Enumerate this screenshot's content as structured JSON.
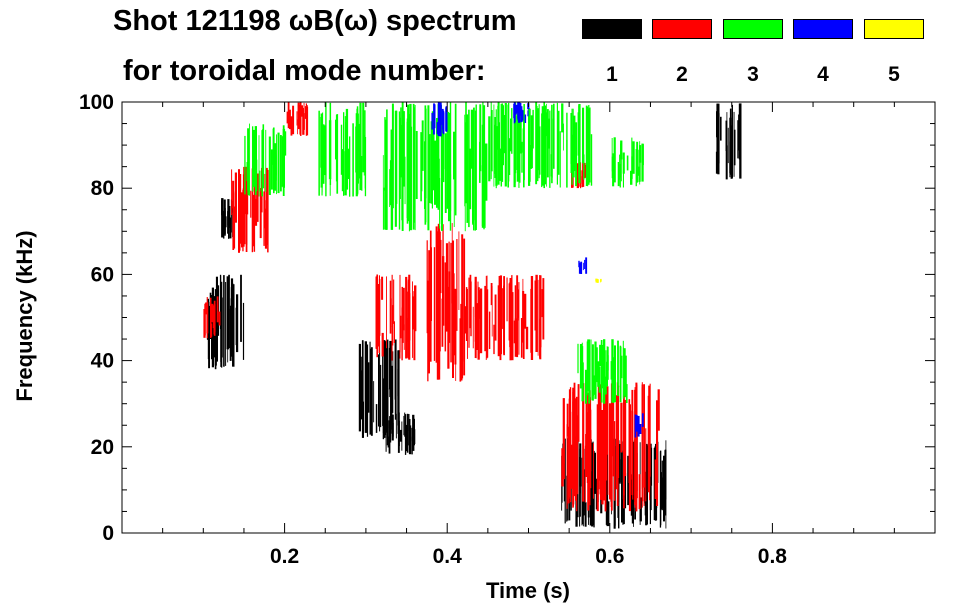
{
  "chart_data": {
    "type": "spectrogram",
    "title_line1": "Shot 121198 ωB(ω) spectrum",
    "title_line2": "for toroidal mode number:",
    "xlabel": "Time (s)",
    "ylabel": "Frequency (kHz)",
    "xlim": [
      0.0,
      1.0
    ],
    "ylim": [
      0,
      100
    ],
    "x_ticks": [
      {
        "value": 0.2,
        "label": "0.2"
      },
      {
        "value": 0.4,
        "label": "0.4"
      },
      {
        "value": 0.6,
        "label": "0.6"
      },
      {
        "value": 0.8,
        "label": "0.8"
      }
    ],
    "y_ticks": [
      {
        "value": 0,
        "label": "0"
      },
      {
        "value": 20,
        "label": "20"
      },
      {
        "value": 40,
        "label": "40"
      },
      {
        "value": 60,
        "label": "60"
      },
      {
        "value": 80,
        "label": "80"
      },
      {
        "value": 100,
        "label": "100"
      }
    ],
    "legend": [
      {
        "label": "1",
        "color": "#000000"
      },
      {
        "label": "2",
        "color": "#ff0000"
      },
      {
        "label": "3",
        "color": "#00ff00"
      },
      {
        "label": "4",
        "color": "#0000ff"
      },
      {
        "label": "5",
        "color": "#ffff00"
      }
    ],
    "regions": [
      {
        "n": 1,
        "t0": 0.1,
        "t1": 0.15,
        "f0": 38,
        "f1": 60
      },
      {
        "n": 1,
        "t0": 0.12,
        "t1": 0.14,
        "f0": 68,
        "f1": 78
      },
      {
        "n": 1,
        "t0": 0.29,
        "t1": 0.34,
        "f0": 22,
        "f1": 45
      },
      {
        "n": 1,
        "t0": 0.32,
        "t1": 0.36,
        "f0": 18,
        "f1": 28
      },
      {
        "n": 1,
        "t0": 0.54,
        "t1": 0.67,
        "f0": 1,
        "f1": 22
      },
      {
        "n": 1,
        "t0": 0.73,
        "t1": 0.76,
        "f0": 82,
        "f1": 100
      },
      {
        "n": 2,
        "t0": 0.1,
        "t1": 0.12,
        "f0": 45,
        "f1": 55
      },
      {
        "n": 2,
        "t0": 0.13,
        "t1": 0.18,
        "f0": 65,
        "f1": 85
      },
      {
        "n": 2,
        "t0": 0.2,
        "t1": 0.23,
        "f0": 92,
        "f1": 100
      },
      {
        "n": 2,
        "t0": 0.31,
        "t1": 0.36,
        "f0": 40,
        "f1": 60
      },
      {
        "n": 2,
        "t0": 0.37,
        "t1": 0.42,
        "f0": 35,
        "f1": 72
      },
      {
        "n": 2,
        "t0": 0.42,
        "t1": 0.52,
        "f0": 40,
        "f1": 60
      },
      {
        "n": 2,
        "t0": 0.54,
        "t1": 0.66,
        "f0": 5,
        "f1": 35
      },
      {
        "n": 2,
        "t0": 0.55,
        "t1": 0.57,
        "f0": 80,
        "f1": 86
      },
      {
        "n": 3,
        "t0": 0.15,
        "t1": 0.2,
        "f0": 78,
        "f1": 95
      },
      {
        "n": 3,
        "t0": 0.24,
        "t1": 0.3,
        "f0": 78,
        "f1": 100
      },
      {
        "n": 3,
        "t0": 0.32,
        "t1": 0.45,
        "f0": 70,
        "f1": 100
      },
      {
        "n": 3,
        "t0": 0.45,
        "t1": 0.58,
        "f0": 80,
        "f1": 100
      },
      {
        "n": 3,
        "t0": 0.56,
        "t1": 0.62,
        "f0": 30,
        "f1": 45
      },
      {
        "n": 3,
        "t0": 0.6,
        "t1": 0.64,
        "f0": 80,
        "f1": 92
      },
      {
        "n": 4,
        "t0": 0.38,
        "t1": 0.4,
        "f0": 92,
        "f1": 100
      },
      {
        "n": 4,
        "t0": 0.48,
        "t1": 0.5,
        "f0": 95,
        "f1": 100
      },
      {
        "n": 4,
        "t0": 0.56,
        "t1": 0.57,
        "f0": 60,
        "f1": 64
      },
      {
        "n": 4,
        "t0": 0.63,
        "t1": 0.64,
        "f0": 22,
        "f1": 28
      },
      {
        "n": 5,
        "t0": 0.58,
        "t1": 0.59,
        "f0": 58,
        "f1": 59
      }
    ]
  }
}
